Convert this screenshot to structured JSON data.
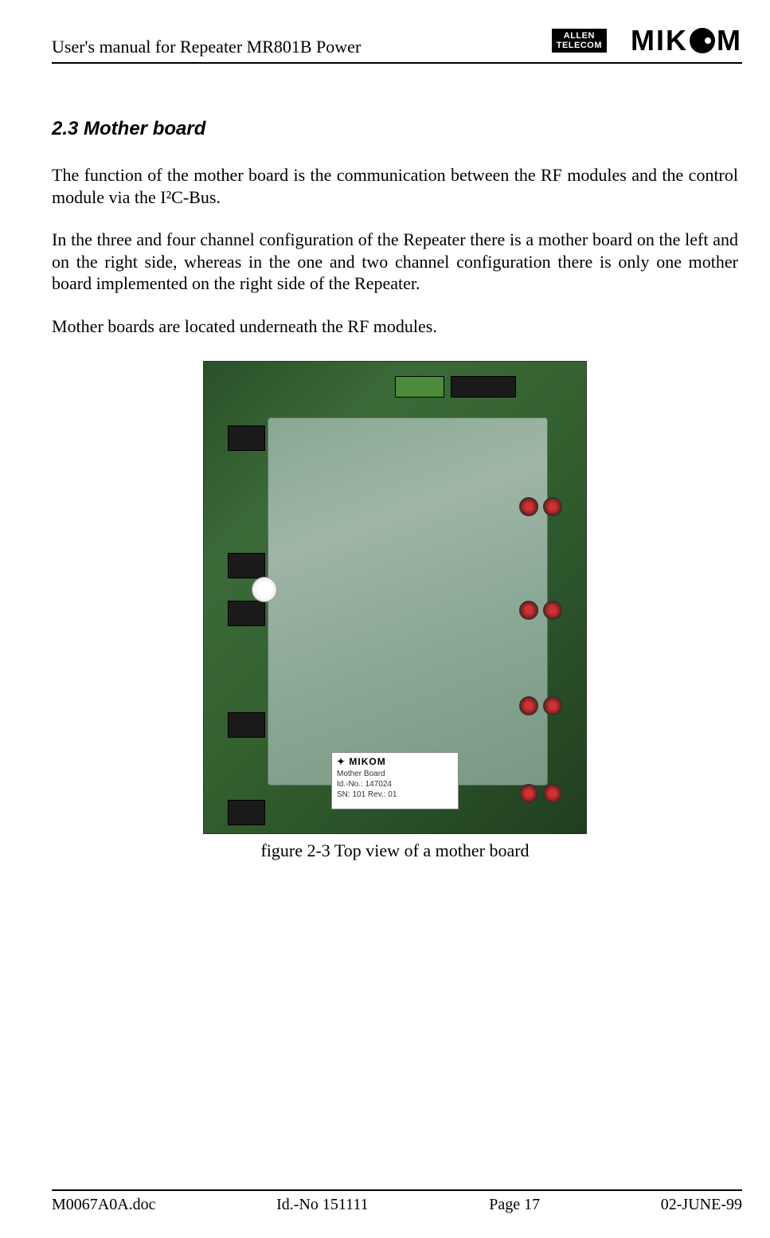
{
  "header": {
    "title": "User's manual for Repeater MR801B Power",
    "logo1_line1": "ALLEN",
    "logo1_line2": "TELECOM",
    "logo2_pre": "MIK",
    "logo2_post": "M"
  },
  "section": {
    "heading": "2.3  Mother board",
    "para1": "The function of the mother board is the communication between the RF modules and the control module via the I²C-Bus.",
    "para2": "In the three and four channel configuration of the Repeater there is a mother board on the left and on the right side, whereas in the one and two channel configuration there is only one mother board implemented on the right side of the Repeater.",
    "para3": "Mother boards are located underneath the RF modules."
  },
  "figure": {
    "caption": "figure 2-3 Top view of a mother board",
    "label_brand": "✦ MIKOM",
    "label_line1": "Mother Board",
    "label_line2": "Id.-No.: 147024",
    "label_line3": "SN: 101        Rev.: 01",
    "colors": {
      "pcb_base": "#2a5028",
      "panel": "#8ba896",
      "connector": "#1a1a1a",
      "rotary": "#cc3333",
      "sticker_bg": "#ffffff"
    }
  },
  "footer": {
    "doc": "M0067A0A.doc",
    "id": "Id.-No 151111",
    "page": "Page 17",
    "date": "02-JUNE-99"
  }
}
